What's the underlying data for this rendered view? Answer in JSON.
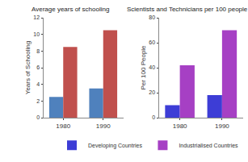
{
  "chart_data": [
    {
      "type": "bar",
      "title": "Average years of schooling",
      "y_label": "Years of Schooling",
      "categories": [
        "1980",
        "1990"
      ],
      "series": [
        {
          "color": "#4f81bd",
          "values": [
            2.5,
            3.5
          ]
        },
        {
          "color": "#c0504d",
          "values": [
            8.5,
            10.5
          ]
        }
      ],
      "ylim": [
        0,
        12
      ],
      "yticks": [
        0,
        2,
        4,
        6,
        8,
        10,
        12
      ],
      "grid": false
    },
    {
      "type": "bar",
      "title": "Scientists and Technicians per 100 people",
      "y_label": "Per 100 People",
      "categories": [
        "1980",
        "1990"
      ],
      "series": [
        {
          "name": "Developing Countries",
          "color": "#3d3dd6",
          "values": [
            10,
            18
          ]
        },
        {
          "name": "Industrialised Countries",
          "color": "#a640c4",
          "values": [
            42,
            70
          ]
        }
      ],
      "ylim": [
        0,
        80
      ],
      "yticks": [
        0,
        20,
        40,
        60,
        80
      ],
      "grid": false,
      "legend": "bottom"
    }
  ]
}
